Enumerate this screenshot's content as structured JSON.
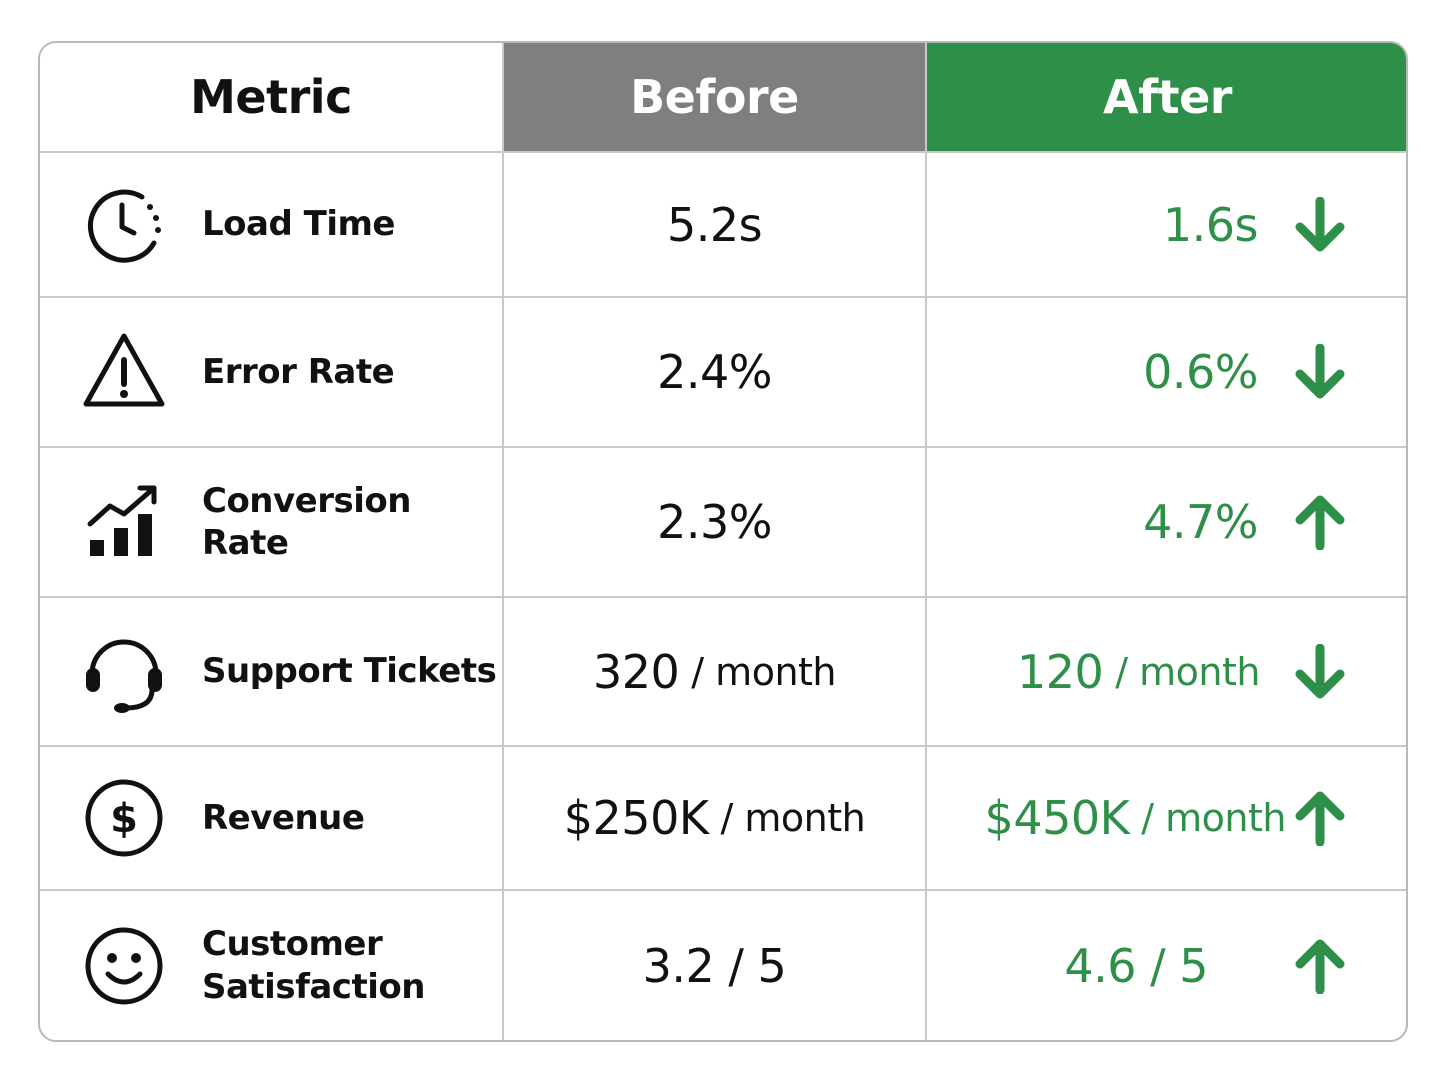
{
  "header": {
    "metric": "Metric",
    "before": "Before",
    "after": "After"
  },
  "colors": {
    "before_header_bg": "#7f7f7f",
    "after_header_bg": "#2e8f48",
    "after_value": "#2e8f48",
    "text": "#111111"
  },
  "rows": [
    {
      "icon": "clock-icon",
      "label": "Load Time",
      "before": "5.2s",
      "after_value": "1.6s",
      "after_unit": "",
      "trend": "down"
    },
    {
      "icon": "warning-triangle-icon",
      "label": "Error Rate",
      "before": "2.4%",
      "after_value": "0.6%",
      "after_unit": "",
      "trend": "down"
    },
    {
      "icon": "growth-chart-icon",
      "label": "Conversion Rate",
      "before": "2.3%",
      "after_value": "4.7%",
      "after_unit": "",
      "trend": "up"
    },
    {
      "icon": "headset-icon",
      "label": "Support Tickets",
      "before_value": "320",
      "before_unit": "/ month",
      "after_value": "120",
      "after_unit": "/ month",
      "trend": "down"
    },
    {
      "icon": "dollar-circle-icon",
      "label": "Revenue",
      "before_value": "$250K",
      "before_unit": "/ month",
      "after_value": "$450K",
      "after_unit": "/ month",
      "trend": "up"
    },
    {
      "icon": "smiley-icon",
      "label_line1": "Customer",
      "label_line2": "Satisfaction",
      "before": "3.2 / 5",
      "after_value": "4.6 / 5",
      "after_unit": "",
      "trend": "up"
    }
  ]
}
